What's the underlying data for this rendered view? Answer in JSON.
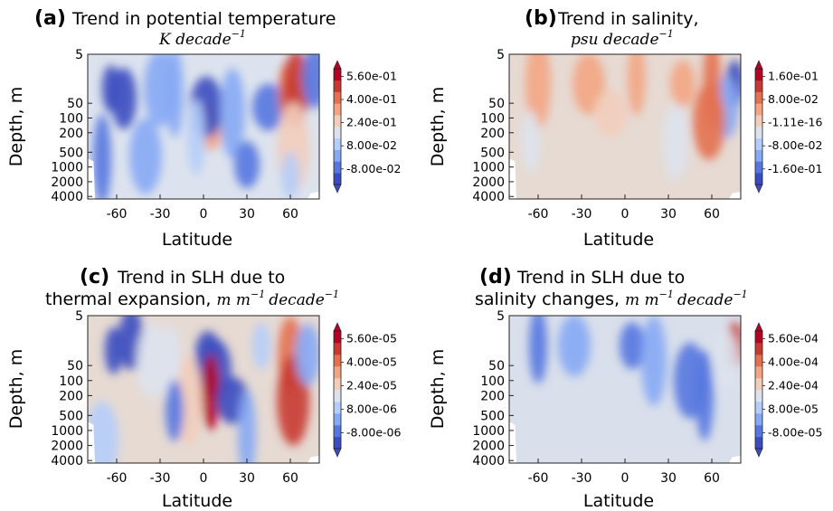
{
  "colors": {
    "palette": [
      "#3b4cc0",
      "#5577e0",
      "#86a8f5",
      "#b5cdfa",
      "#dde3ee",
      "#f2cdbb",
      "#f3a583",
      "#e3714f",
      "#c83a31",
      "#b40426"
    ],
    "background_fill": "#dde3ee",
    "background_fill_light": "#e6dad3"
  },
  "chart_data": [
    {
      "type": "heatmap",
      "panel_letter": "(a)",
      "title": "Trend in potential temperature",
      "title_line2_math": "K decade",
      "title_line2_sup": "−1",
      "xlabel": "Latitude",
      "ylabel": "Depth, m",
      "xlim": [
        -80,
        80
      ],
      "y_scale": "log",
      "ylim": [
        4500,
        5
      ],
      "xticks": [
        -60,
        -30,
        0,
        30,
        60
      ],
      "ytick_labels": [
        "5",
        "50",
        "100",
        "200",
        "500",
        "1000",
        "2000",
        "4000"
      ],
      "colorbar_labels": [
        "5.60e-01",
        "4.00e-01",
        "2.40e-01",
        "8.00e-02",
        "-8.00e-02"
      ],
      "colorbar_range": [
        -0.16,
        0.64
      ],
      "features": [
        {
          "lat": -64,
          "depth": 25,
          "value": -0.15
        },
        {
          "lat": -55,
          "depth": 40,
          "value": -0.08
        },
        {
          "lat": -30,
          "depth": 25,
          "value": 0.06
        },
        {
          "lat": -20,
          "depth": 30,
          "value": 0.05
        },
        {
          "lat": 5,
          "depth": 150,
          "value": 0.34
        },
        {
          "lat": 2,
          "depth": 60,
          "value": -0.1
        },
        {
          "lat": -5,
          "depth": 250,
          "value": 0.16
        },
        {
          "lat": 20,
          "depth": 80,
          "value": 0.05
        },
        {
          "lat": 45,
          "depth": 60,
          "value": -0.04
        },
        {
          "lat": 58,
          "depth": 30,
          "value": 0.4
        },
        {
          "lat": 64,
          "depth": 25,
          "value": 0.5
        },
        {
          "lat": 62,
          "depth": 400,
          "value": 0.3
        },
        {
          "lat": 60,
          "depth": 1500,
          "value": 0.12
        },
        {
          "lat": 77,
          "depth": 15,
          "value": -0.06
        },
        {
          "lat": -40,
          "depth": 600,
          "value": 0.04
        },
        {
          "lat": -70,
          "depth": 700,
          "value": -0.04
        },
        {
          "lat": 30,
          "depth": 900,
          "value": -0.03
        }
      ]
    },
    {
      "type": "heatmap",
      "panel_letter": "(b)",
      "title": "Trend in salinity,",
      "title_line2_math": "psu decade",
      "title_line2_sup": "−1",
      "xlabel": "Latitude",
      "ylabel": "Depth, m",
      "xlim": [
        -80,
        80
      ],
      "y_scale": "log",
      "ylim": [
        4500,
        5
      ],
      "xticks": [
        -60,
        -30,
        0,
        30,
        60
      ],
      "ytick_labels": [
        "5",
        "50",
        "100",
        "200",
        "500",
        "1000",
        "2000",
        "4000"
      ],
      "colorbar_labels": [
        "1.60e-01",
        "8.00e-02",
        "-1.11e-16",
        "-8.00e-02",
        "-1.60e-01"
      ],
      "colorbar_range": [
        -0.2,
        0.2
      ],
      "features": [
        {
          "lat": 76,
          "depth": 20,
          "value": -0.19
        },
        {
          "lat": 70,
          "depth": 60,
          "value": -0.12
        },
        {
          "lat": 58,
          "depth": 120,
          "value": 0.12
        },
        {
          "lat": 60,
          "depth": 20,
          "value": 0.08
        },
        {
          "lat": 40,
          "depth": 20,
          "value": 0.05
        },
        {
          "lat": -25,
          "depth": 20,
          "value": 0.05
        },
        {
          "lat": 8,
          "depth": 15,
          "value": 0.05
        },
        {
          "lat": -60,
          "depth": 20,
          "value": 0.04
        },
        {
          "lat": -10,
          "depth": 80,
          "value": 0.03
        },
        {
          "lat": -65,
          "depth": 300,
          "value": -0.015
        },
        {
          "lat": 35,
          "depth": 300,
          "value": -0.015
        }
      ]
    },
    {
      "type": "heatmap",
      "panel_letter": "(c)",
      "title": "Trend in SLH due to",
      "title_line2_text": "thermal expansion,",
      "title_line2_math": "m m",
      "title_line2_sup": "−1",
      "title_line2_math2": "decade",
      "title_line2_sup2": "−1",
      "xlabel": "Latitude",
      "ylabel": "Depth, m",
      "xlim": [
        -80,
        80
      ],
      "y_scale": "log",
      "ylim": [
        4500,
        5
      ],
      "xticks": [
        -60,
        -30,
        0,
        30,
        60
      ],
      "ytick_labels": [
        "5",
        "50",
        "100",
        "200",
        "500",
        "1000",
        "2000",
        "4000"
      ],
      "colorbar_labels": [
        "5.60e-05",
        "4.00e-05",
        "2.40e-05",
        "8.00e-06",
        "-8.00e-06"
      ],
      "colorbar_range": [
        -1.6e-05,
        6.4e-05
      ],
      "features": [
        {
          "lat": -62,
          "depth": 25,
          "value": -1.2e-05
        },
        {
          "lat": -50,
          "depth": 15,
          "value": -1e-05
        },
        {
          "lat": -35,
          "depth": 40,
          "value": 2.2e-05
        },
        {
          "lat": -22,
          "depth": 60,
          "value": 1.6e-05
        },
        {
          "lat": 3,
          "depth": 30,
          "value": -1.8e-05
        },
        {
          "lat": 8,
          "depth": 60,
          "value": -1.4e-05
        },
        {
          "lat": 5,
          "depth": 170,
          "value": 6e-05
        },
        {
          "lat": -10,
          "depth": 250,
          "value": 3e-05
        },
        {
          "lat": 20,
          "depth": 250,
          "value": -1e-05
        },
        {
          "lat": -20,
          "depth": 400,
          "value": -8e-06
        },
        {
          "lat": 60,
          "depth": 30,
          "value": 4e-05
        },
        {
          "lat": 62,
          "depth": 250,
          "value": 5e-05
        },
        {
          "lat": 40,
          "depth": 20,
          "value": 1.4e-05
        },
        {
          "lat": 72,
          "depth": 30,
          "value": 6e-06
        },
        {
          "lat": -70,
          "depth": 1500,
          "value": 8e-06
        },
        {
          "lat": 30,
          "depth": 1200,
          "value": 6e-06
        }
      ]
    },
    {
      "type": "heatmap",
      "panel_letter": "(d)",
      "title": "Trend in SLH due to",
      "title_line2_text": "salinity changes,",
      "title_line2_math": "m m",
      "title_line2_sup": "−1",
      "title_line2_math2": "decade",
      "title_line2_sup2": "−1",
      "xlabel": "Latitude",
      "ylabel": "Depth, m",
      "xlim": [
        -80,
        80
      ],
      "y_scale": "log",
      "ylim": [
        4500,
        5
      ],
      "xticks": [
        -60,
        -30,
        0,
        30,
        60
      ],
      "ytick_labels": [
        "5",
        "50",
        "100",
        "200",
        "500",
        "1000",
        "2000",
        "4000"
      ],
      "colorbar_labels": [
        "5.60e-04",
        "4.00e-04",
        "2.40e-04",
        "8.00e-05",
        "-8.00e-05"
      ],
      "colorbar_range": [
        -0.00016,
        0.00064
      ],
      "features": [
        {
          "lat": 76,
          "depth": 20,
          "value": 0.0005
        },
        {
          "lat": 70,
          "depth": 40,
          "value": 0.00018
        },
        {
          "lat": 45,
          "depth": 100,
          "value": -8e-05
        },
        {
          "lat": 55,
          "depth": 200,
          "value": -6e-05
        },
        {
          "lat": 5,
          "depth": 20,
          "value": -5e-05
        },
        {
          "lat": -35,
          "depth": 20,
          "value": 4e-05
        },
        {
          "lat": -60,
          "depth": 20,
          "value": -4e-05
        },
        {
          "lat": 20,
          "depth": 40,
          "value": 4e-05
        }
      ]
    }
  ]
}
